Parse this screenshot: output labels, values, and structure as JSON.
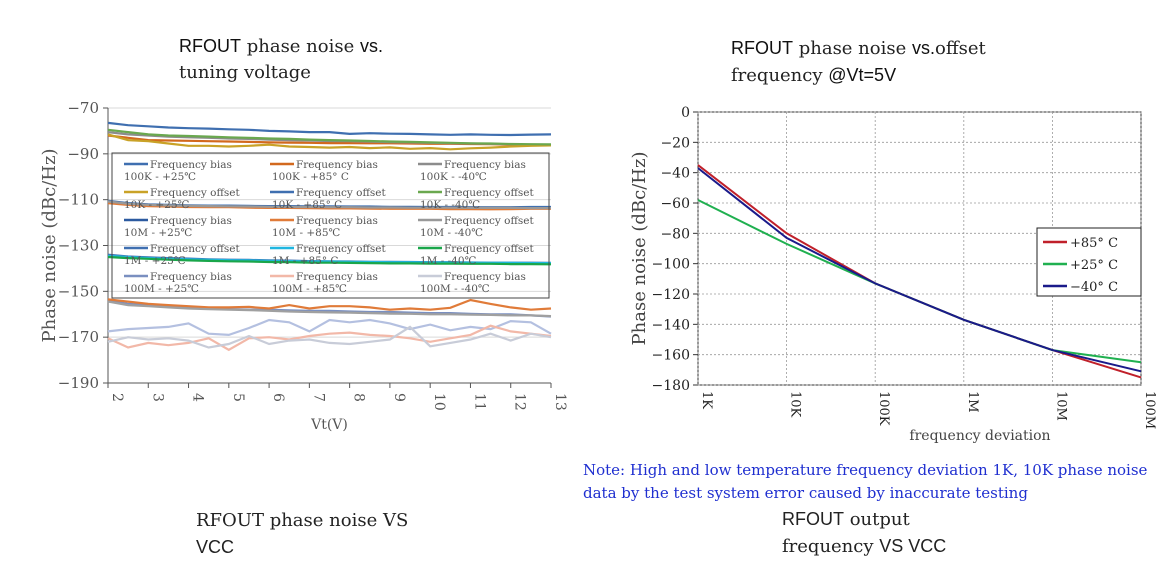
{
  "titles": {
    "left_b": "RFOUT",
    "left_rest1": " phase noise ",
    "left_vs": "vs.",
    "left_line2": "tuning voltage",
    "right_b": "RFOUT",
    "right_rest1": " phase noise ",
    "right_vs": "vs.",
    "right_rest2": "offset",
    "right_line2a": "frequency ",
    "right_line2b": "@Vt=5V",
    "bottom_left_a": "RFOUT phase noise VS",
    "bottom_left_b": "VCC",
    "bottom_right_b": "RFOUT",
    "bottom_right_a": " output",
    "bottom_right_c": "frequency ",
    "bottom_right_d": "VS VCC"
  },
  "note": "Note: High and low temperature frequency deviation 1K, 10K phase noise data by the test system error caused by inaccurate testing",
  "chart_data": [
    {
      "type": "line",
      "xlabel": "Vt(V)",
      "ylabel": "Phase noise (dBc/Hz)",
      "xlim": [
        2,
        13
      ],
      "ylim": [
        -190,
        -70
      ],
      "xticks": [
        "2",
        "3",
        "4",
        "5",
        "6",
        "7",
        "8",
        "9",
        "10",
        "11",
        "12",
        "13"
      ],
      "yticks": [
        "-70",
        "-90",
        "-110",
        "-130",
        "-150",
        "-170",
        "-190"
      ],
      "grid": true,
      "legend_position": "center",
      "x": [
        2,
        2.5,
        3,
        3.5,
        4,
        4.5,
        5,
        5.5,
        6,
        6.5,
        7,
        7.5,
        8,
        8.5,
        9,
        9.5,
        10,
        10.5,
        11,
        11.5,
        12,
        12.5,
        13
      ],
      "series": [
        {
          "name": "Frequency bias 100K - +25℃",
          "color": "#3f6fb0",
          "values": [
            -76.5,
            -77.5,
            -78,
            -78.5,
            -78.8,
            -79,
            -79.3,
            -79.5,
            -80,
            -80.2,
            -80.5,
            -80.5,
            -81.3,
            -81,
            -81.2,
            -81.3,
            -81.5,
            -81.7,
            -81.5,
            -81.7,
            -81.8,
            -81.6,
            -81.5
          ]
        },
        {
          "name": "Frequency bias 100K - +85° C",
          "color": "#d2691e",
          "values": [
            -82,
            -83,
            -84,
            -84.2,
            -84.3,
            -84.5,
            -84.6,
            -84.8,
            -85,
            -85.1,
            -85.2,
            -85.3,
            -85.3,
            -85.4,
            -85.4,
            -85.5,
            -85.6,
            -85.6,
            -85.7,
            -85.8,
            -86,
            -86,
            -86.1
          ]
        },
        {
          "name": "Frequency bias 100K - -40℃",
          "color": "#8c8c8c",
          "values": [
            -80.5,
            -81.5,
            -82,
            -82.5,
            -82.8,
            -83,
            -83.3,
            -83.5,
            -83.8,
            -84,
            -84.2,
            -84.4,
            -84.5,
            -84.7,
            -84.9,
            -85,
            -85.2,
            -85.3,
            -85.5,
            -85.6,
            -85.8,
            -86,
            -86.2
          ]
        },
        {
          "name": "Frequency offset 10K - +25℃",
          "color": "#c9a227",
          "values": [
            -81.5,
            -84,
            -84.5,
            -85.5,
            -86.5,
            -86.5,
            -86.8,
            -86.5,
            -86,
            -86.8,
            -87,
            -87.3,
            -87,
            -87.5,
            -87.2,
            -87.8,
            -87.5,
            -88,
            -87.6,
            -87.3,
            -86.8,
            -86.5,
            -86.3
          ]
        },
        {
          "name": "Frequency offset 10K - +85° C",
          "color": "#3f6fb0",
          "values": [
            -110.5,
            -111.5,
            -112,
            -112.3,
            -112.5,
            -112.6,
            -112.6,
            -112.7,
            -112.8,
            -112.8,
            -112.9,
            -112.9,
            -113,
            -113,
            -113.1,
            -113.1,
            -113.2,
            -113.2,
            -113.3,
            -113.3,
            -113.3,
            -113.2,
            -113.2
          ]
        },
        {
          "name": "Frequency offset 10K - -40℃",
          "color": "#6aa84f",
          "values": [
            -79.5,
            -80.5,
            -81.5,
            -82,
            -82.2,
            -82.5,
            -82.8,
            -83,
            -83.3,
            -83.5,
            -83.8,
            -84,
            -84.2,
            -84.4,
            -84.6,
            -84.8,
            -85,
            -85.2,
            -85.4,
            -85.5,
            -85.7,
            -85.8,
            -85.9
          ]
        },
        {
          "name": "Frequency bias 10M - +25℃",
          "color": "#2c5aa0",
          "values": [
            -111,
            -112,
            -112.5,
            -112.7,
            -112.8,
            -113,
            -113,
            -113.1,
            -113.2,
            -113.2,
            -113.3,
            -113.3,
            -113.4,
            -113.4,
            -113.5,
            -113.5,
            -113.5,
            -113.6,
            -113.6,
            -113.7,
            -113.7,
            -113.7,
            -113.8
          ]
        },
        {
          "name": "Frequency bias 10M - +85℃",
          "color": "#e07b39",
          "values": [
            -111.5,
            -112.3,
            -112.8,
            -113,
            -113.2,
            -113.3,
            -113.3,
            -113.5,
            -113.6,
            -113.6,
            -113.7,
            -113.8,
            -113.8,
            -113.9,
            -114,
            -114,
            -114,
            -114.1,
            -114.1,
            -114.2,
            -114.1,
            -114,
            -114
          ]
        },
        {
          "name": "Frequency offset 10M - -40℃",
          "color": "#999999",
          "values": [
            -110.8,
            -111.8,
            -112.3,
            -112.5,
            -112.7,
            -112.8,
            -112.9,
            -113,
            -113.1,
            -113.2,
            -113.2,
            -113.3,
            -113.3,
            -113.4,
            -113.4,
            -113.5,
            -113.5,
            -113.5,
            -113.6,
            -113.6,
            -113.6,
            -113.7,
            -113.7
          ]
        },
        {
          "name": "Frequency offset 1M - +25℃",
          "color": "#3f6fb0",
          "values": [
            -134,
            -134.8,
            -135.2,
            -135.5,
            -135.7,
            -136,
            -136.2,
            -136.3,
            -136.5,
            -136.6,
            -136.8,
            -136.9,
            -137,
            -137.1,
            -137.1,
            -137.2,
            -137.3,
            -137.3,
            -137.4,
            -137.5,
            -137.5,
            -137.5,
            -137.6
          ]
        },
        {
          "name": "Frequency offset 1M - +85° C",
          "color": "#1fb6e0",
          "values": [
            -134.5,
            -135,
            -135.5,
            -135.8,
            -136,
            -136.2,
            -136.4,
            -136.5,
            -136.7,
            -136.8,
            -137,
            -137,
            -137.1,
            -137.2,
            -137.3,
            -137.3,
            -137.4,
            -137.4,
            -137.5,
            -137.6,
            -137.6,
            -137.7,
            -137.7
          ]
        },
        {
          "name": "Frequency offset 1M - -40℃",
          "color": "#1aa64a",
          "values": [
            -135,
            -135.5,
            -135.8,
            -136.2,
            -136.5,
            -136.7,
            -136.9,
            -137,
            -137.2,
            -137.3,
            -137.5,
            -137.5,
            -137.6,
            -137.7,
            -137.8,
            -137.8,
            -137.9,
            -137.9,
            -138,
            -138,
            -138.1,
            -138.1,
            -138.2
          ]
        },
        {
          "name": "Frequency bias 100M - +25℃",
          "color": "#7a8fc0",
          "values": [
            -154,
            -155.5,
            -156,
            -156.5,
            -157,
            -157.5,
            -157.8,
            -158,
            -158,
            -158.3,
            -158.5,
            -158.5,
            -158.8,
            -159,
            -159,
            -159.3,
            -159.5,
            -159.5,
            -159.8,
            -160,
            -160,
            -160.5,
            -161
          ]
        },
        {
          "name": "Frequency bias 100M - +85℃",
          "color": "#e07b39",
          "values": [
            -153.5,
            -154.5,
            -155.5,
            -156,
            -156.5,
            -157,
            -157,
            -156.8,
            -157.5,
            -156,
            -157.5,
            -156.5,
            -156.5,
            -157,
            -158,
            -157.5,
            -158,
            -157.2,
            -153.8,
            -155.5,
            -157,
            -158,
            -157.5
          ]
        },
        {
          "name": "Frequency bias 100M - -40℃",
          "color": "#a0a0a0",
          "values": [
            -154.5,
            -156,
            -156.5,
            -157,
            -157.5,
            -157.8,
            -158,
            -158.2,
            -158.5,
            -158.8,
            -159,
            -159.2,
            -159.3,
            -159.5,
            -159.7,
            -159.8,
            -160,
            -160,
            -160.2,
            -160.3,
            -160.5,
            -160.5,
            -160.8
          ]
        },
        {
          "name": "",
          "color": "#b4c0e0",
          "values": [
            -167.5,
            -166.5,
            -166,
            -165.5,
            -164,
            -168.5,
            -169,
            -166,
            -162.5,
            -163.5,
            -167.5,
            -162.5,
            -163.5,
            -162.5,
            -164,
            -166.5,
            -164.5,
            -167,
            -165.5,
            -166.5,
            -163,
            -163.5,
            -168.5
          ]
        },
        {
          "name": "",
          "color": "#f2b8a8",
          "values": [
            -170.5,
            -174.5,
            -172.5,
            -173.5,
            -172.5,
            -170.5,
            -175.5,
            -170.5,
            -170,
            -171,
            -169.5,
            -168.5,
            -168,
            -169,
            -169.5,
            -170.5,
            -172,
            -170.5,
            -169,
            -165,
            -167.5,
            -168.5,
            -169.5
          ]
        },
        {
          "name": "",
          "color": "#c8ccd8",
          "values": [
            -172,
            -170,
            -171,
            -170.5,
            -171.5,
            -174.5,
            -173,
            -169.5,
            -173,
            -171.5,
            -171,
            -172.5,
            -173,
            -172,
            -171,
            -165.5,
            -174,
            -172.5,
            -171,
            -168.5,
            -171.5,
            -168.5,
            -170
          ]
        }
      ],
      "legend_entries": [
        "Frequency bias 100K - +25℃",
        "Frequency bias 100K - +85° C",
        "Frequency bias 100K - -40℃",
        "Frequency offset 10K - +25℃",
        "Frequency offset 10K - +85° C",
        "Frequency offset 10K - -40℃",
        "Frequency bias 10M - +25℃",
        "Frequency bias 10M - +85℃",
        "Frequency offset 10M - -40℃",
        "Frequency offset 1M - +25℃",
        "Frequency offset 1M - +85° C",
        "Frequency offset 1M - -40℃",
        "Frequency bias 100M - +25℃",
        "Frequency bias 100M - +85℃",
        "Frequency bias 100M - -40℃"
      ]
    },
    {
      "type": "line",
      "xlabel": "frequency deviation",
      "ylabel": "Phase noise (dBc/Hz)",
      "xscale": "log",
      "xticks": [
        "1K",
        "10K",
        "100K",
        "1M",
        "10M",
        "100M"
      ],
      "yticks": [
        "0",
        "−20",
        "−40",
        "−60",
        "−80",
        "−100",
        "−120",
        "−140",
        "−160",
        "−180"
      ],
      "ylim": [
        -180,
        0
      ],
      "grid": true,
      "legend_position": "right",
      "x": [
        "1K",
        "10K",
        "100K",
        "1M",
        "10M",
        "100M"
      ],
      "series": [
        {
          "name": "+85° C",
          "color": "#c0202a",
          "values": [
            -35,
            -80,
            -113,
            -137,
            -157,
            -175
          ]
        },
        {
          "name": "+25° C",
          "color": "#20b050",
          "values": [
            -58,
            -87,
            -113,
            -137,
            -157,
            -165
          ]
        },
        {
          "name": "−40° C",
          "color": "#1a1a8a",
          "values": [
            -37,
            -83,
            -113,
            -137,
            -157,
            -171
          ]
        }
      ]
    }
  ]
}
